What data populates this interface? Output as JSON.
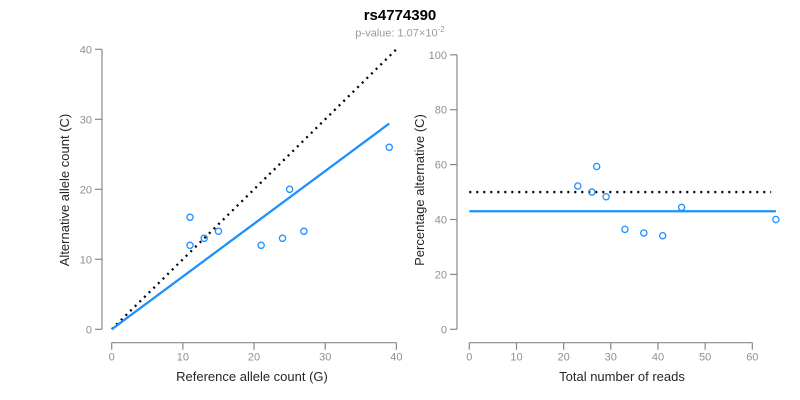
{
  "header": {
    "title": "rs4774390",
    "subtitle_base": "p-value: 1.07×10",
    "subtitle_exponent": "-2"
  },
  "colors": {
    "accent_blue": "#1E90FF",
    "axis_gray": "#888888",
    "tick_label_gray": "#909090",
    "label_dark": "#262626",
    "line_black": "#000000"
  },
  "chart_data": [
    {
      "type": "scatter",
      "name": "allele-counts-scatter",
      "xlabel": "Reference allele count (G)",
      "ylabel": "Alternative allele count (C)",
      "xlim": [
        0,
        40
      ],
      "ylim": [
        0,
        40
      ],
      "xticks": [
        0,
        10,
        20,
        30,
        40
      ],
      "yticks": [
        0,
        10,
        20,
        30,
        40
      ],
      "grid": false,
      "points": [
        [
          11,
          12
        ],
        [
          11,
          16
        ],
        [
          13,
          13
        ],
        [
          15,
          14
        ],
        [
          21,
          12
        ],
        [
          24,
          13
        ],
        [
          25,
          20
        ],
        [
          27,
          14
        ],
        [
          39,
          26
        ]
      ],
      "lines": [
        {
          "name": "identity-line",
          "style": "dashed",
          "color": "#000000",
          "x1": 0,
          "y1": 0,
          "x2": 40,
          "y2": 40
        },
        {
          "name": "fit-line",
          "style": "solid",
          "color": "#1E90FF",
          "x1": 0,
          "y1": 0,
          "x2": 39,
          "y2": 29.4
        }
      ]
    },
    {
      "type": "scatter",
      "name": "percentage-scatter",
      "xlabel": "Total number of reads",
      "ylabel": "Percentage alternative (C)",
      "xlim": [
        0,
        65
      ],
      "ylim": [
        0,
        100
      ],
      "xticks": [
        0,
        10,
        20,
        30,
        40,
        50,
        60
      ],
      "yticks": [
        0,
        20,
        40,
        60,
        80,
        100
      ],
      "grid": false,
      "points": [
        [
          23,
          52.2
        ],
        [
          26,
          50
        ],
        [
          27,
          59.3
        ],
        [
          29,
          48.3
        ],
        [
          33,
          36.4
        ],
        [
          37,
          35.1
        ],
        [
          41,
          34.1
        ],
        [
          45,
          44.4
        ],
        [
          65,
          40
        ]
      ],
      "lines": [
        {
          "name": "expected-50pct-line",
          "style": "dotted",
          "color": "#000000",
          "x1": 0,
          "y1": 50,
          "x2": 64,
          "y2": 50
        },
        {
          "name": "mean-pct-line",
          "style": "solid",
          "color": "#1E90FF",
          "x1": 0,
          "y1": 43,
          "x2": 65,
          "y2": 43
        }
      ]
    }
  ]
}
